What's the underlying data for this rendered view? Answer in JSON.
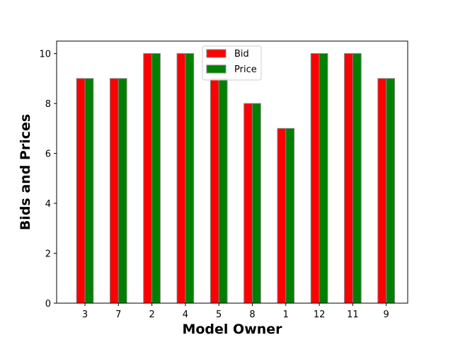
{
  "chart_data": {
    "type": "bar",
    "categories": [
      "3",
      "7",
      "2",
      "4",
      "5",
      "8",
      "1",
      "12",
      "11",
      "9"
    ],
    "series": [
      {
        "name": "Bid",
        "values": [
          9,
          9,
          10,
          10,
          9,
          8,
          7,
          10,
          10,
          9
        ],
        "color": "#ff0000"
      },
      {
        "name": "Price",
        "values": [
          9,
          9,
          10,
          10,
          9,
          8,
          7,
          10,
          10,
          9
        ],
        "color": "#008000"
      }
    ],
    "title": "",
    "xlabel": "Model Owner",
    "ylabel": "Bids and Prices",
    "ylim": [
      0,
      10.5
    ],
    "yticks": [
      0,
      2,
      4,
      6,
      8,
      10
    ],
    "grid": false,
    "legend_position": "top-center",
    "bar_edge_color": "#808080"
  }
}
